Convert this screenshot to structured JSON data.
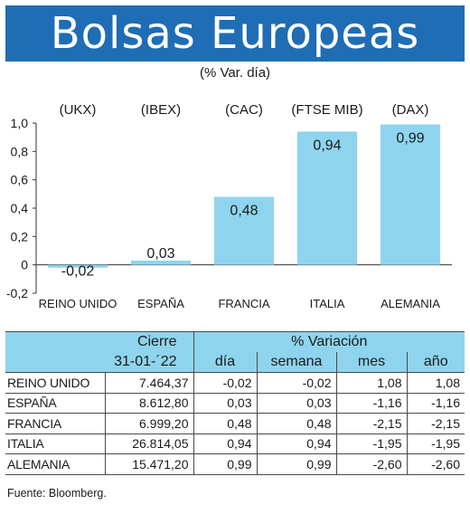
{
  "header": {
    "title": "Bolsas Europeas",
    "subtitle": "(% Var. día)"
  },
  "colors": {
    "banner": "#1f6db5",
    "bar": "#8fd4ee",
    "table_header": "#8fd4ee"
  },
  "chart_data": {
    "type": "bar",
    "categories": [
      "REINO UNIDO",
      "ESPAÑA",
      "FRANCIA",
      "ITALIA",
      "ALEMANIA"
    ],
    "index_codes": [
      "(UKX)",
      "(IBEX)",
      "(CAC)",
      "(FTSE MIB)",
      "(DAX)"
    ],
    "values": [
      -0.02,
      0.03,
      0.48,
      0.94,
      0.99
    ],
    "value_labels": [
      "-0,02",
      "0,03",
      "0,48",
      "0,94",
      "0,99"
    ],
    "ylim": [
      -0.2,
      1.0
    ],
    "yticks": [
      1.0,
      0.8,
      0.6,
      0.4,
      0.2,
      0,
      -0.2
    ],
    "ytick_labels": [
      "1,0",
      "0,8",
      "0,6",
      "0,4",
      "0,2",
      "0",
      "-0,2"
    ],
    "title": "",
    "xlabel": "",
    "ylabel": "",
    "grid": false
  },
  "table": {
    "header_cierre": "Cierre",
    "header_variacion": "% Variación",
    "date": "31-01-´22",
    "col_dia": "día",
    "col_semana": "semana",
    "col_mes": "mes",
    "col_anio": "año",
    "rows": [
      {
        "name": "REINO UNIDO",
        "cierre": "7.464,37",
        "dia": "-0,02",
        "semana": "-0,02",
        "mes": "1,08",
        "anio": "1,08"
      },
      {
        "name": "ESPAÑA",
        "cierre": "8.612,80",
        "dia": "0,03",
        "semana": "0,03",
        "mes": "-1,16",
        "anio": "-1,16"
      },
      {
        "name": "FRANCIA",
        "cierre": "6.999,20",
        "dia": "0,48",
        "semana": "0,48",
        "mes": "-2,15",
        "anio": "-2,15"
      },
      {
        "name": "ITALIA",
        "cierre": "26.814,05",
        "dia": "0,94",
        "semana": "0,94",
        "mes": "-1,95",
        "anio": "-1,95"
      },
      {
        "name": "ALEMANIA",
        "cierre": "15.471,20",
        "dia": "0,99",
        "semana": "0,99",
        "mes": "-2,60",
        "anio": "-2,60"
      }
    ]
  },
  "footer": {
    "source": "Fuente: Bloomberg."
  }
}
